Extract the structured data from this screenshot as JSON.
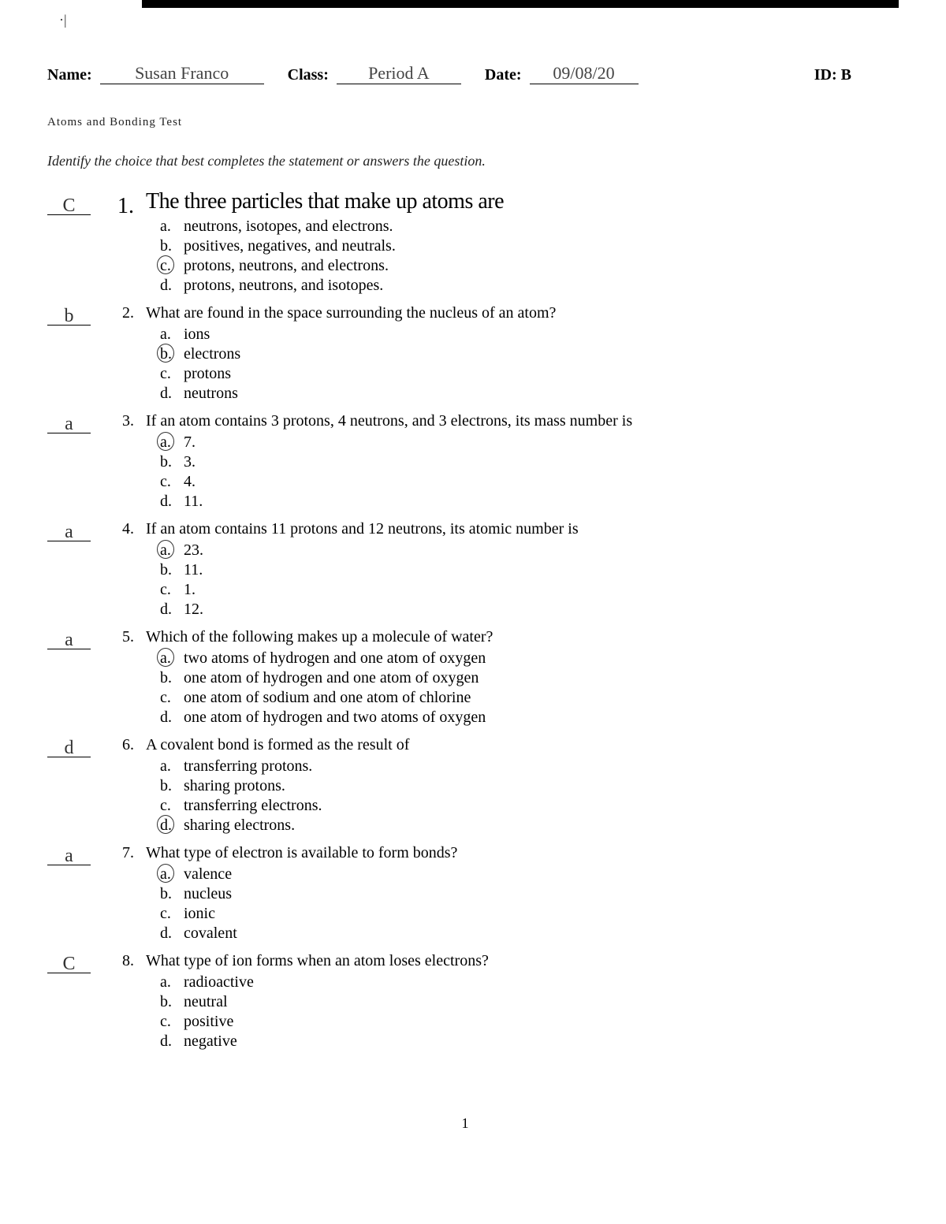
{
  "top_mark": "·|",
  "header": {
    "name_label": "Name:",
    "name_value": "Susan Franco",
    "class_label": "Class:",
    "class_value": "Period A",
    "date_label": "Date:",
    "date_value": "09/08/20",
    "id_label": "ID:",
    "id_value": "B"
  },
  "section_title": "Atoms and Bonding Test",
  "instruction": "Identify the choice that best completes the statement or answers the question.",
  "questions": [
    {
      "num": "1.",
      "answer": "C",
      "text": "The three particles that make up atoms are",
      "large": true,
      "choices": [
        {
          "l": "a.",
          "t": "neutrons, isotopes, and electrons.",
          "circled": false
        },
        {
          "l": "b.",
          "t": "positives, negatives, and neutrals.",
          "circled": false
        },
        {
          "l": "c.",
          "t": "protons, neutrons, and electrons.",
          "circled": true
        },
        {
          "l": "d.",
          "t": "protons, neutrons, and isotopes.",
          "circled": false
        }
      ]
    },
    {
      "num": "2.",
      "answer": "b",
      "text": "What are found in the space surrounding the nucleus of an atom?",
      "choices": [
        {
          "l": "a.",
          "t": "ions",
          "circled": false
        },
        {
          "l": "b.",
          "t": "electrons",
          "circled": true
        },
        {
          "l": "c.",
          "t": "protons",
          "circled": false
        },
        {
          "l": "d.",
          "t": "neutrons",
          "circled": false
        }
      ]
    },
    {
      "num": "3.",
      "answer": "a",
      "text": "If an atom contains 3 protons, 4 neutrons, and 3 electrons, its mass number is",
      "choices": [
        {
          "l": "a.",
          "t": "7.",
          "circled": true
        },
        {
          "l": "b.",
          "t": "3.",
          "circled": false
        },
        {
          "l": "c.",
          "t": "4.",
          "circled": false
        },
        {
          "l": "d.",
          "t": "11.",
          "circled": false
        }
      ]
    },
    {
      "num": "4.",
      "answer": "a",
      "text": "If an atom contains 11 protons and 12 neutrons, its atomic number is",
      "choices": [
        {
          "l": "a.",
          "t": "23.",
          "circled": true
        },
        {
          "l": "b.",
          "t": "11.",
          "circled": false
        },
        {
          "l": "c.",
          "t": "1.",
          "circled": false
        },
        {
          "l": "d.",
          "t": "12.",
          "circled": false
        }
      ]
    },
    {
      "num": "5.",
      "answer": "a",
      "text": "Which of the following makes up a molecule of water?",
      "choices": [
        {
          "l": "a.",
          "t": "two atoms of hydrogen and one atom of oxygen",
          "circled": true
        },
        {
          "l": "b.",
          "t": "one atom of hydrogen and one atom of oxygen",
          "circled": false
        },
        {
          "l": "c.",
          "t": "one atom of sodium and one atom of chlorine",
          "circled": false
        },
        {
          "l": "d.",
          "t": "one atom of hydrogen and two atoms of oxygen",
          "circled": false
        }
      ]
    },
    {
      "num": "6.",
      "answer": "d",
      "text": "A covalent bond is formed as the result of",
      "choices": [
        {
          "l": "a.",
          "t": "transferring protons.",
          "circled": false
        },
        {
          "l": "b.",
          "t": "sharing protons.",
          "circled": false
        },
        {
          "l": "c.",
          "t": "transferring electrons.",
          "circled": false
        },
        {
          "l": "d.",
          "t": "sharing electrons.",
          "circled": true
        }
      ]
    },
    {
      "num": "7.",
      "answer": "a",
      "text": "What type of electron is available to form bonds?",
      "choices": [
        {
          "l": "a.",
          "t": "valence",
          "circled": true
        },
        {
          "l": "b.",
          "t": "nucleus",
          "circled": false
        },
        {
          "l": "c.",
          "t": "ionic",
          "circled": false
        },
        {
          "l": "d.",
          "t": "covalent",
          "circled": false
        }
      ]
    },
    {
      "num": "8.",
      "answer": "C",
      "text": "What type of ion forms when an atom loses electrons?",
      "choices": [
        {
          "l": "a.",
          "t": "radioactive",
          "circled": false
        },
        {
          "l": "b.",
          "t": "neutral",
          "circled": false
        },
        {
          "l": "c.",
          "t": "positive",
          "circled": false
        },
        {
          "l": "d.",
          "t": "negative",
          "circled": false
        }
      ]
    }
  ],
  "page_number": "1"
}
